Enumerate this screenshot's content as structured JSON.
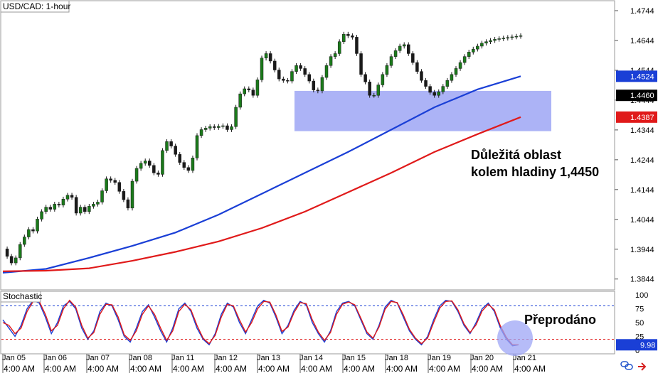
{
  "chart_data": [
    {
      "type": "line",
      "title": "USD/CAD: 1-hour",
      "y_ticks": [
        "1.4744",
        "1.4644",
        "1.4544",
        "1.4444",
        "1.4344",
        "1.4244",
        "1.4144",
        "1.4044",
        "1.3944",
        "1.3844"
      ],
      "y_tick_values": [
        1.4744,
        1.4644,
        1.4544,
        1.4444,
        1.4344,
        1.4244,
        1.4144,
        1.4044,
        1.3944,
        1.3844
      ],
      "ylim": [
        1.381,
        1.4775
      ],
      "x_labels": [
        "Jan 05",
        "Jan 06",
        "Jan 07",
        "Jan 08",
        "Jan 11",
        "Jan 12",
        "Jan 13",
        "Jan 14",
        "Jan 15",
        "Jan 18",
        "Jan 19",
        "Jan 20",
        "Jan 21"
      ],
      "x_times": [
        "4:00 AM",
        "4:00 AM",
        "4:00 AM",
        "4:00 AM",
        "4:00 AM",
        "4:00 AM",
        "4:00 AM",
        "4:00 AM",
        "4:00 AM",
        "4:00 AM",
        "4:00 AM",
        "4:00 AM",
        "4:00 AM"
      ],
      "price_labels": [
        {
          "text": "1.4524",
          "value": 1.4524,
          "color": "#1a3fd6"
        },
        {
          "text": "1.4460",
          "value": 1.446,
          "color": "#000000"
        },
        {
          "text": "1.4387",
          "value": 1.4387,
          "color": "#e01a1a"
        }
      ],
      "series": [
        {
          "color": "#1a7a1a",
          "x": [
            0,
            1,
            2,
            3,
            4,
            5,
            6,
            7,
            8,
            9,
            10,
            11,
            12,
            13,
            14,
            15,
            16,
            17,
            18,
            19,
            20,
            21,
            22,
            23,
            24,
            25,
            26,
            27,
            28,
            29,
            30,
            31,
            32,
            33,
            34,
            35,
            36,
            37,
            38,
            39,
            40,
            41,
            42,
            43,
            44,
            45,
            46,
            47,
            48,
            49,
            50,
            51,
            52,
            53,
            54,
            55,
            56,
            57,
            58,
            59,
            60,
            61,
            62,
            63,
            64,
            65,
            66,
            67,
            68,
            69,
            70,
            71,
            72,
            73,
            74,
            75,
            76,
            77,
            78,
            79,
            80,
            81,
            82,
            83,
            84,
            85,
            86,
            87,
            88,
            89,
            90,
            91,
            92,
            93,
            94,
            95,
            96,
            97,
            98,
            99,
            100,
            101,
            102,
            103,
            104,
            105,
            106,
            107,
            108,
            109,
            110,
            111,
            112,
            113,
            114,
            115,
            116,
            117,
            118,
            119,
            120
          ],
          "values": [
            1.3945,
            1.392,
            1.3898,
            1.3915,
            1.396,
            1.3985,
            1.401,
            1.4005,
            1.4045,
            1.407,
            1.4085,
            1.4078,
            1.4095,
            1.4092,
            1.4112,
            1.4125,
            1.4118,
            1.4065,
            1.4085,
            1.407,
            1.4088,
            1.4095,
            1.4102,
            1.414,
            1.418,
            1.4175,
            1.4168,
            1.4138,
            1.411,
            1.4082,
            1.4172,
            1.4215,
            1.4232,
            1.424,
            1.4225,
            1.42,
            1.4195,
            1.4275,
            1.4305,
            1.429,
            1.4262,
            1.4235,
            1.4218,
            1.4208,
            1.425,
            1.4325,
            1.4345,
            1.435,
            1.4355,
            1.4352,
            1.4356,
            1.4358,
            1.4345,
            1.4355,
            1.442,
            1.4465,
            1.4482,
            1.4478,
            1.446,
            1.4512,
            1.4585,
            1.46,
            1.4575,
            1.4545,
            1.4515,
            1.451,
            1.4508,
            1.454,
            1.456,
            1.455,
            1.453,
            1.4508,
            1.4478,
            1.4475,
            1.452,
            1.456,
            1.459,
            1.46,
            1.464,
            1.4665,
            1.466,
            1.4655,
            1.46,
            1.453,
            1.4505,
            1.446,
            1.446,
            1.4495,
            1.453,
            1.456,
            1.459,
            1.461,
            1.4625,
            1.463,
            1.46,
            1.457,
            1.454,
            1.451,
            1.449,
            1.447,
            1.446,
            1.4472,
            1.449,
            1.451,
            1.453,
            1.455,
            1.457,
            1.459,
            1.4605,
            1.4615,
            1.4625,
            1.4635,
            1.464,
            1.4644,
            1.4648,
            1.465,
            1.4652,
            1.4654,
            1.4656,
            1.4658,
            1.466
          ]
        },
        {
          "color": "#1a3fd6",
          "values_note_skip": "",
          "x": [
            0,
            10,
            20,
            30,
            40,
            50,
            60,
            70,
            80,
            90,
            100,
            110,
            120
          ],
          "values": [
            1.3865,
            1.3878,
            1.3915,
            1.3955,
            1.4,
            1.406,
            1.413,
            1.42,
            1.427,
            1.4345,
            1.442,
            1.448,
            1.4524
          ]
        },
        {
          "color": "#e01a1a",
          "x": [
            0,
            10,
            20,
            30,
            40,
            50,
            60,
            70,
            80,
            90,
            100,
            110,
            120
          ],
          "values": [
            1.387,
            1.3872,
            1.388,
            1.3905,
            1.3935,
            1.397,
            1.4015,
            1.407,
            1.4135,
            1.42,
            1.427,
            1.433,
            1.4387
          ]
        }
      ],
      "annotations": [
        {
          "text": "Důležitá oblast",
          "color": "#000000"
        },
        {
          "text": "kolem hladiny 1,4450",
          "color": "#000000"
        }
      ],
      "zone": {
        "y_low": 1.434,
        "y_high": 1.4475,
        "fill": "#9ea6f5"
      }
    },
    {
      "type": "line",
      "title": "Stochastic",
      "y_ticks": [
        "100",
        "75",
        "50",
        "25",
        "0"
      ],
      "y_tick_values": [
        100,
        75,
        50,
        25,
        0
      ],
      "ylim": [
        -5,
        105
      ],
      "levels": [
        80,
        20
      ],
      "current_value_label": "9.98",
      "annotation": "Přeprodáno",
      "series": [
        {
          "color": "#1a3fd6",
          "values": [
            55,
            40,
            25,
            45,
            75,
            90,
            85,
            60,
            30,
            50,
            80,
            88,
            75,
            40,
            20,
            35,
            70,
            85,
            80,
            55,
            25,
            15,
            40,
            70,
            82,
            60,
            35,
            15,
            40,
            75,
            85,
            70,
            40,
            20,
            10,
            30,
            65,
            85,
            78,
            50,
            30,
            55,
            80,
            90,
            85,
            60,
            30,
            45,
            72,
            88,
            82,
            50,
            30,
            15,
            35,
            70,
            85,
            88,
            80,
            55,
            30,
            20,
            45,
            78,
            90,
            85,
            60,
            35,
            20,
            10,
            25,
            55,
            80,
            90,
            88,
            70,
            45,
            30,
            50,
            75,
            85,
            70,
            40,
            20,
            8,
            10
          ]
        },
        {
          "color": "#e01a1a",
          "values": [
            50,
            45,
            30,
            40,
            70,
            88,
            88,
            65,
            35,
            45,
            75,
            90,
            78,
            45,
            22,
            32,
            65,
            83,
            82,
            60,
            28,
            18,
            35,
            65,
            80,
            65,
            40,
            18,
            35,
            70,
            83,
            73,
            45,
            22,
            12,
            27,
            60,
            83,
            80,
            55,
            33,
            50,
            75,
            88,
            87,
            64,
            34,
            42,
            68,
            86,
            84,
            55,
            33,
            18,
            32,
            65,
            83,
            87,
            82,
            58,
            33,
            22,
            42,
            74,
            88,
            86,
            64,
            38,
            22,
            12,
            22,
            50,
            76,
            88,
            89,
            73,
            48,
            32,
            46,
            71,
            83,
            73,
            44,
            23,
            10,
            9.98
          ]
        }
      ],
      "x_labels": [
        "Jan 05",
        "Jan 06",
        "Jan 07",
        "Jan 08",
        "Jan 11",
        "Jan 12",
        "Jan 13",
        "Jan 14",
        "Jan 15",
        "Jan 18",
        "Jan 19",
        "Jan 20",
        "Jan 21"
      ]
    }
  ]
}
